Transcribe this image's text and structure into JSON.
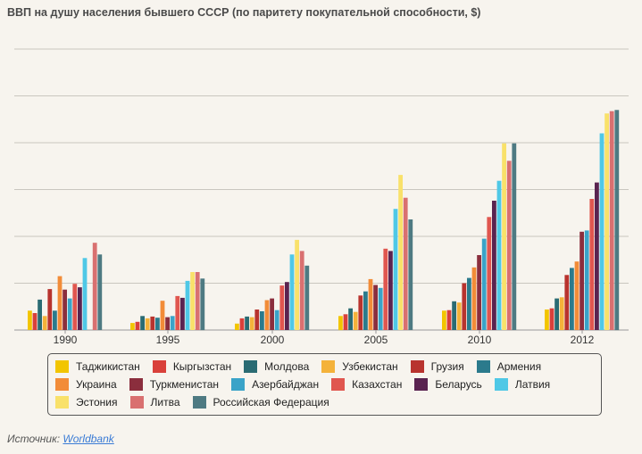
{
  "title": "ВВП на душу населения бывшего СССР (по паритету покупательной способности, $)",
  "source": {
    "label": "Источник:",
    "link_text": "Worldbank"
  },
  "chart_data": {
    "type": "bar",
    "title": "ВВП на душу населения бывшего СССР (по паритету покупательной способности, $)",
    "xlabel": "",
    "ylabel": "",
    "ylim": [
      0,
      24000
    ],
    "grid": true,
    "legend_position": "bottom",
    "categories": [
      "1990",
      "1995",
      "2000",
      "2005",
      "2010",
      "2012"
    ],
    "series": [
      {
        "name": "Таджикистан",
        "color": "#f2c500",
        "values": [
          1650,
          600,
          550,
          1200,
          1650,
          1750
        ]
      },
      {
        "name": "Кыргызстан",
        "color": "#d9403a",
        "values": [
          1450,
          700,
          1000,
          1350,
          1700,
          1850
        ]
      },
      {
        "name": "Молдова",
        "color": "#2a6b73",
        "values": [
          2600,
          1200,
          1150,
          1850,
          2450,
          2700
        ]
      },
      {
        "name": "Узбекистан",
        "color": "#f4b23a",
        "values": [
          1200,
          1000,
          1100,
          1550,
          2350,
          2800
        ]
      },
      {
        "name": "Грузия",
        "color": "#b8332e",
        "values": [
          3500,
          1150,
          1750,
          2950,
          4000,
          4700
        ]
      },
      {
        "name": "Армения",
        "color": "#2b7a8c",
        "values": [
          1650,
          1050,
          1600,
          3300,
          4450,
          5300
        ]
      },
      {
        "name": "Украина",
        "color": "#f28c38",
        "values": [
          4600,
          2500,
          2550,
          4350,
          5350,
          5850
        ]
      },
      {
        "name": "Туркменистан",
        "color": "#8b2e3d",
        "values": [
          3450,
          1100,
          2700,
          3850,
          6400,
          8400
        ]
      },
      {
        "name": "Азербайджан",
        "color": "#3aa3c8",
        "values": [
          2700,
          1200,
          1700,
          3600,
          7800,
          8500
        ]
      },
      {
        "name": "Казахстан",
        "color": "#e0564f",
        "values": [
          3950,
          2900,
          3800,
          6950,
          9650,
          11200
        ]
      },
      {
        "name": "Беларусь",
        "color": "#5a2350",
        "values": [
          3650,
          2750,
          4100,
          6750,
          11050,
          12600
        ]
      },
      {
        "name": "Латвия",
        "color": "#4fc8e6",
        "values": [
          6150,
          4200,
          6450,
          10350,
          12750,
          16800
        ]
      },
      {
        "name": "Эстония",
        "color": "#f9e16a",
        "values": [
          0,
          4950,
          7700,
          13250,
          15950,
          18500
        ]
      },
      {
        "name": "Литва",
        "color": "#d97070",
        "values": [
          7450,
          4950,
          6750,
          11300,
          14450,
          18700
        ]
      },
      {
        "name": "Российская Федерация",
        "color": "#4e7a82",
        "values": [
          6450,
          4400,
          5500,
          9450,
          15950,
          18800
        ]
      }
    ]
  }
}
